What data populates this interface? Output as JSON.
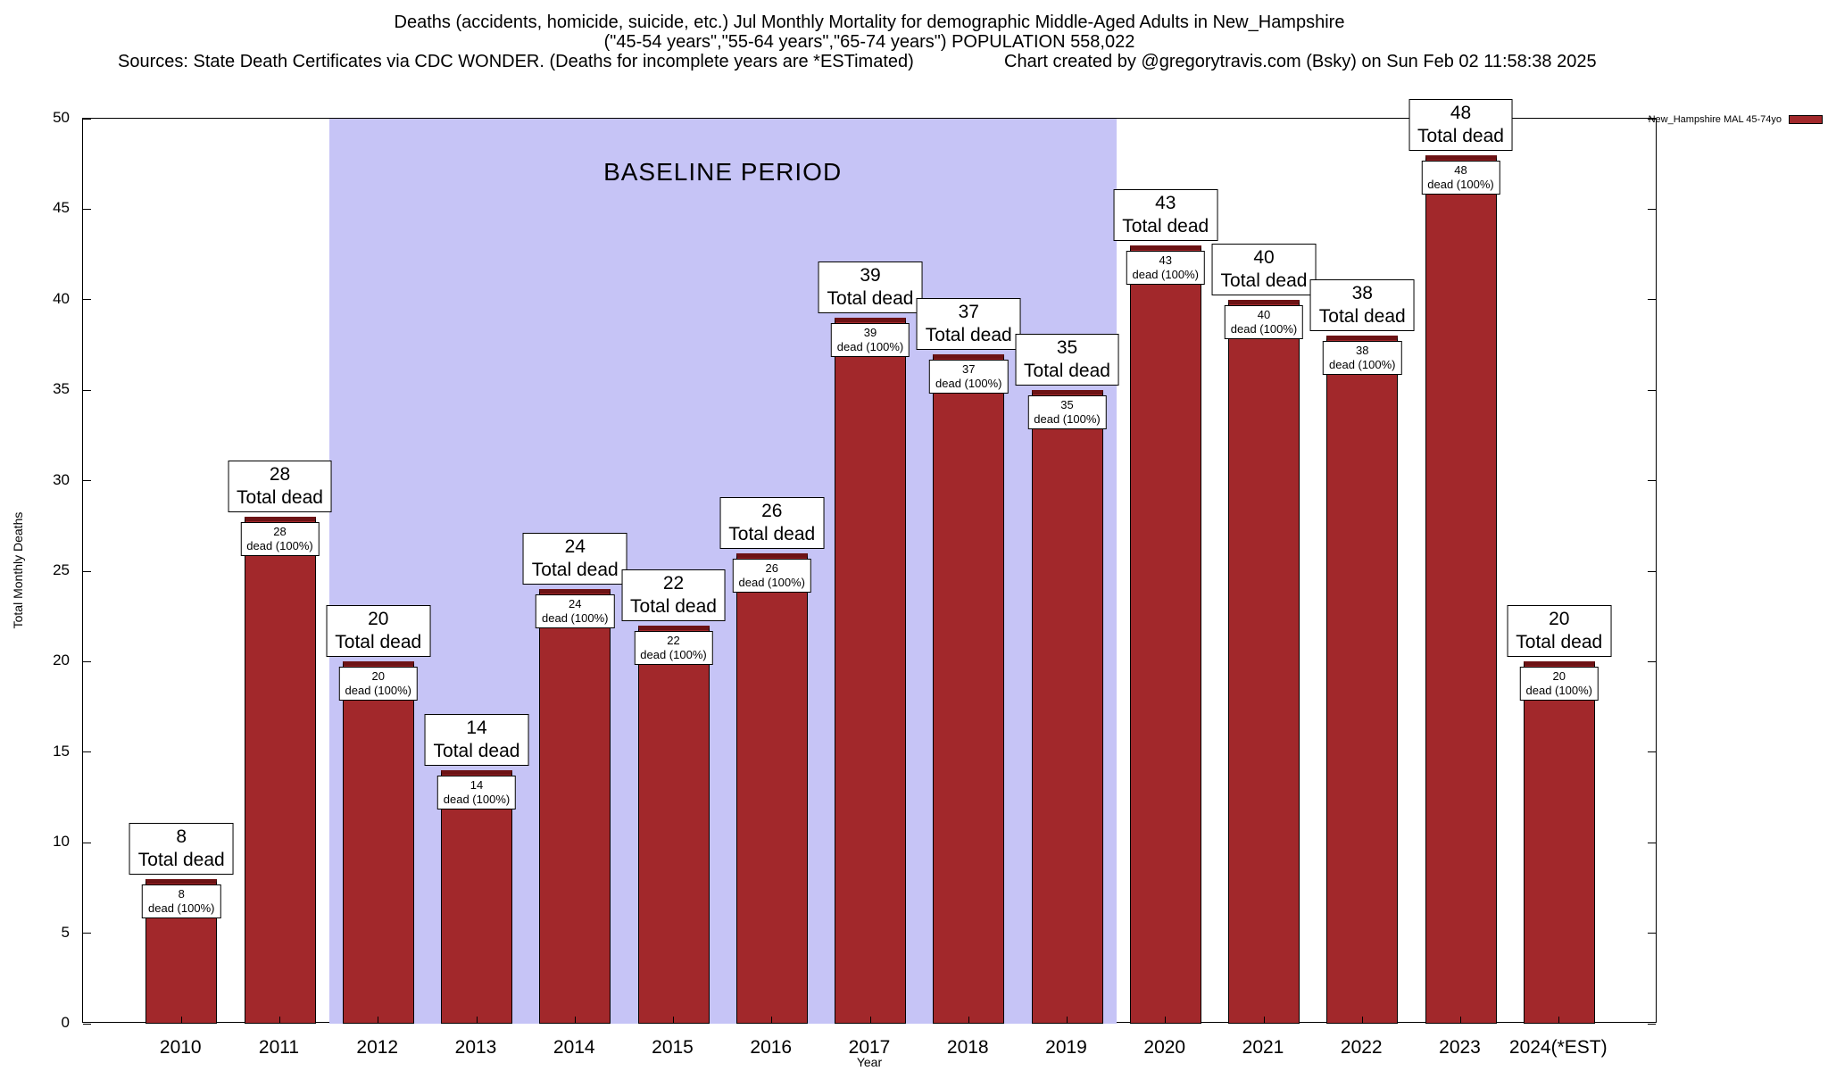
{
  "header": {
    "title_line1": "Deaths (accidents, homicide, suicide, etc.) Jul Monthly Mortality for demographic Middle-Aged Adults in New_Hampshire",
    "title_line2": "(\"45-54 years\",\"55-64 years\",\"65-74 years\") POPULATION 558,022",
    "sources": "Sources: State Death Certificates via CDC WONDER. (Deaths for incomplete years are *ESTimated)",
    "credit": "Chart created by @gregorytravis.com (Bsky) on Sun Feb 02 11:58:38 2025"
  },
  "legend": {
    "series_label": "New_Hampshire MAL 45-74yo",
    "swatch_color": "#a2282b"
  },
  "chart_data": {
    "type": "bar",
    "title": "Deaths (accidents, homicide, suicide, etc.) Jul Monthly Mortality for demographic Middle-Aged Adults in New_Hampshire",
    "subtitle": "(\"45-54 years\",\"55-64 years\",\"65-74 years\") POPULATION 558,022",
    "xlabel": "Year",
    "ylabel": "Total Monthly Deaths",
    "ylim": [
      0,
      50
    ],
    "yticks": [
      0,
      5,
      10,
      15,
      20,
      25,
      30,
      35,
      40,
      45,
      50
    ],
    "grid": false,
    "legend_position": "top-right-outside",
    "categories": [
      "2010",
      "2011",
      "2012",
      "2013",
      "2014",
      "2015",
      "2016",
      "2017",
      "2018",
      "2019",
      "2020",
      "2021",
      "2022",
      "2023",
      "2024(*EST)"
    ],
    "series": [
      {
        "name": "New_Hampshire MAL 45-74yo",
        "values": [
          8,
          28,
          20,
          14,
          24,
          22,
          26,
          39,
          37,
          35,
          43,
          40,
          38,
          48,
          20
        ]
      }
    ],
    "bar_color": "#a2282b",
    "bar_cap_color": "#6d1315",
    "bar_outline": "#000000",
    "label_above_suffix": "Total dead",
    "label_inner_suffix": "dead (100%)",
    "baseline_band": {
      "label": "BASELINE PERIOD",
      "from_category": "2012",
      "to_category": "2019",
      "color": "#c6c4f6"
    }
  }
}
